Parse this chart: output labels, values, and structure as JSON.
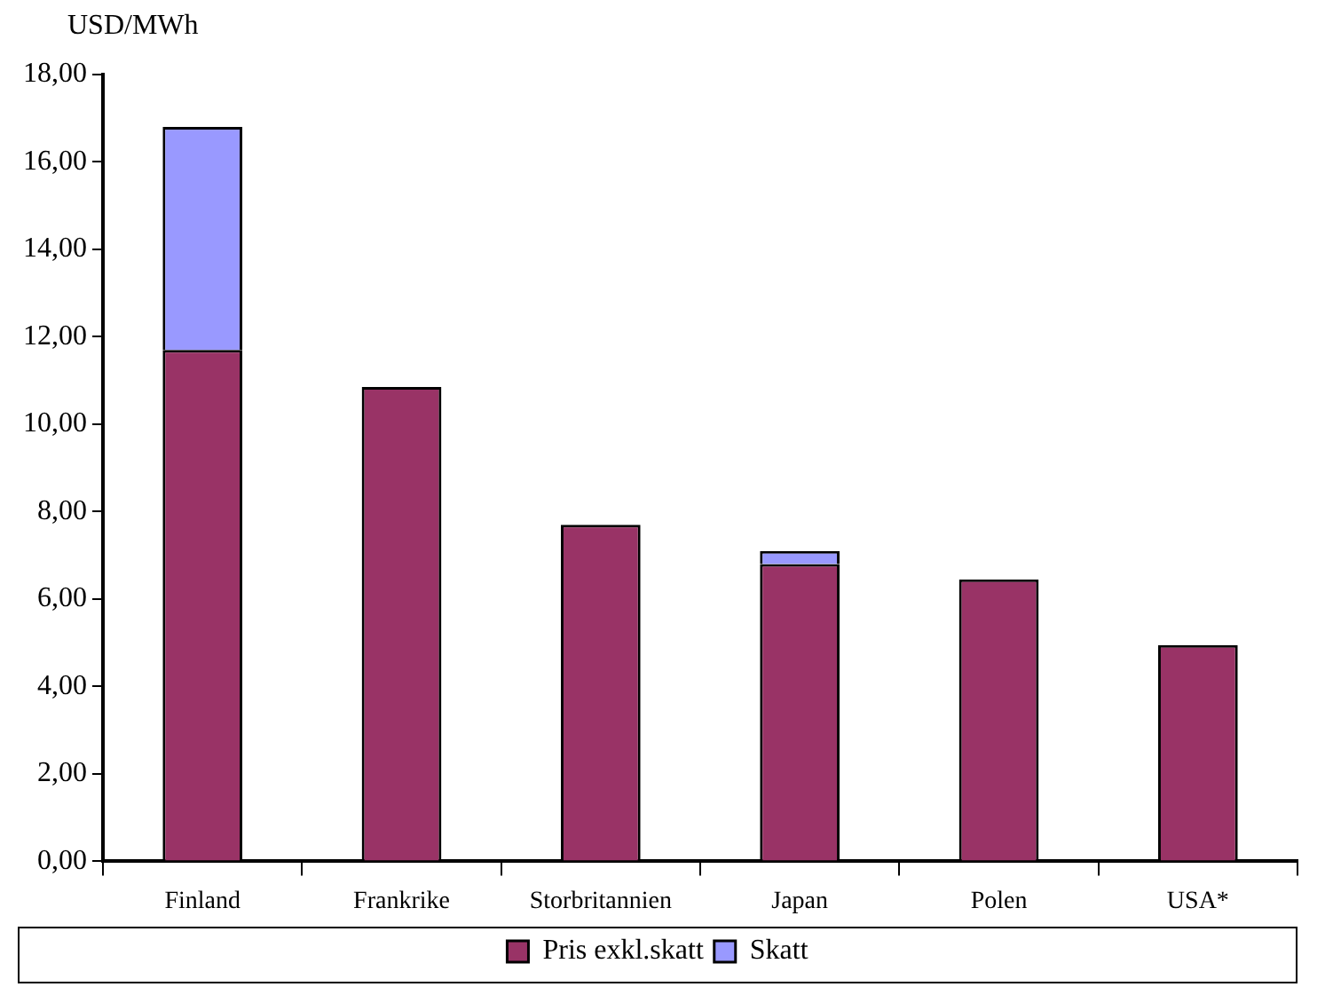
{
  "chart_data": {
    "type": "bar",
    "ylabel": "USD/MWh",
    "stacked": true,
    "categories": [
      "Finland",
      "Frankrike",
      "Storbritannien",
      "Japan",
      "Polen",
      "USA*"
    ],
    "series": [
      {
        "name": "Pris exkl.skatt",
        "color": "#993366",
        "values": [
          11.7,
          10.85,
          7.7,
          6.8,
          6.45,
          4.95
        ]
      },
      {
        "name": "Skatt",
        "color": "#9999ff",
        "values": [
          5.1,
          null,
          null,
          0.3,
          null,
          null
        ]
      }
    ],
    "ylim": [
      0,
      18
    ],
    "yticks": [
      {
        "value": 0,
        "label": "0,00"
      },
      {
        "value": 2,
        "label": "2,00"
      },
      {
        "value": 4,
        "label": "4,00"
      },
      {
        "value": 6,
        "label": "6,00"
      },
      {
        "value": 8,
        "label": "8,00"
      },
      {
        "value": 10,
        "label": "10,00"
      },
      {
        "value": 12,
        "label": "12,00"
      },
      {
        "value": 14,
        "label": "14,00"
      },
      {
        "value": 16,
        "label": "16,00"
      },
      {
        "value": 18,
        "label": "18,00"
      }
    ],
    "grid": false,
    "legend": "bottom"
  }
}
